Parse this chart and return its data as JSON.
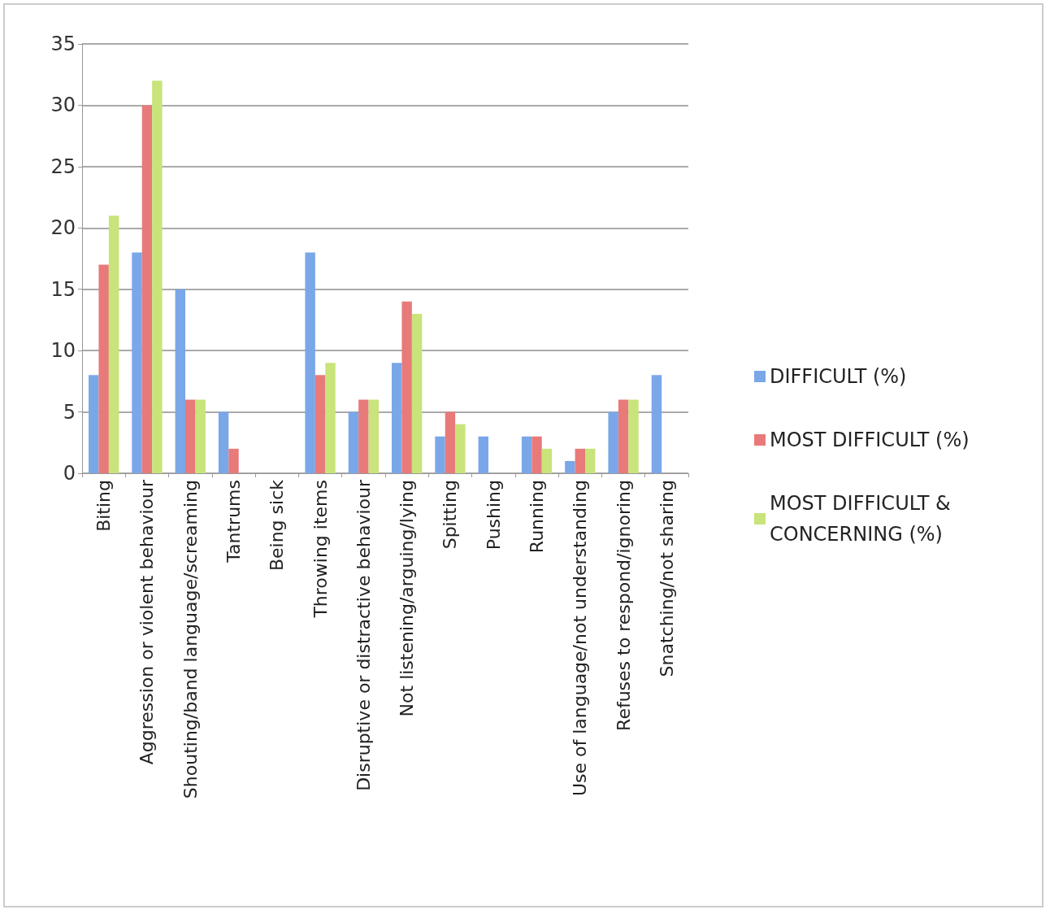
{
  "chart_data": {
    "type": "bar",
    "categories": [
      "Biting",
      "Aggression or violent behaviour",
      "Shouting/band language/screaming",
      "Tantrums",
      "Being sick",
      "Throwing items",
      "Disruptive or distractive behaviour",
      "Not listening/arguing/lying",
      "Spitting",
      "Pushing",
      "Running",
      "Use of language/not understanding",
      "Refuses to respond/ignoring",
      "Snatching/not sharing"
    ],
    "series": [
      {
        "name": "DIFFICULT (%)",
        "color": "#7aa7e8",
        "values": [
          8,
          18,
          15,
          5,
          0,
          18,
          5,
          9,
          3,
          3,
          3,
          1,
          5,
          8
        ]
      },
      {
        "name": "MOST DIFFICULT (%)",
        "color": "#e87a7a",
        "values": [
          17,
          30,
          6,
          2,
          0,
          8,
          6,
          14,
          5,
          0,
          3,
          2,
          6,
          0
        ]
      },
      {
        "name": "MOST DIFFICULT & CONCERNING (%)",
        "color": "#c8e47a",
        "values": [
          21,
          32,
          6,
          0,
          0,
          9,
          6,
          13,
          4,
          0,
          2,
          2,
          6,
          0
        ]
      }
    ],
    "ylim": [
      0,
      35
    ],
    "yticks": [
      0,
      5,
      10,
      15,
      20,
      25,
      30,
      35
    ],
    "grid": "y",
    "legend": "right"
  }
}
